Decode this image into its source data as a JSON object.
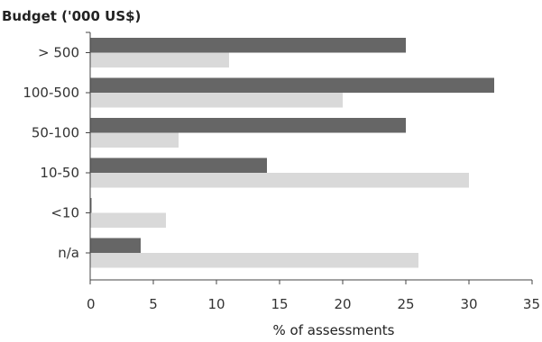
{
  "chart_data": {
    "type": "bar",
    "orientation": "horizontal",
    "title": "",
    "ylabel": "Budget ('000 US$)",
    "xlabel": "% of assessments",
    "categories": [
      "> 500",
      "100-500",
      "50-100",
      "10-50",
      "<10",
      "n/a"
    ],
    "series": [
      {
        "color": "#666666",
        "values": [
          25,
          32,
          25,
          14,
          0,
          4
        ]
      },
      {
        "color": "#d9d9d9",
        "values": [
          11,
          20,
          7,
          30,
          6,
          26
        ]
      }
    ],
    "xlim": [
      0,
      35
    ],
    "xticks": [
      "0",
      "5",
      "10",
      "15",
      "20",
      "25",
      "30",
      "35"
    ],
    "grid": false,
    "legend": "none"
  }
}
